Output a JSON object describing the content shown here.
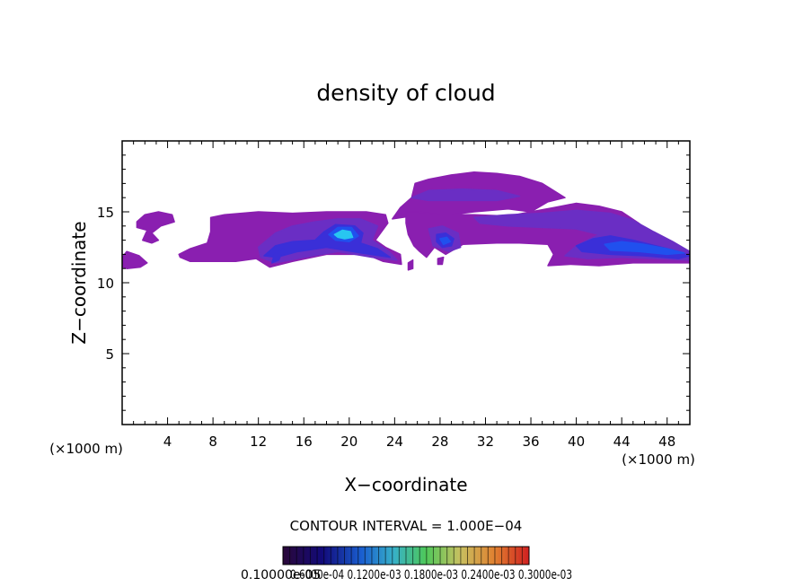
{
  "chart_data": {
    "type": "heatmap",
    "title": "density of cloud",
    "xlabel": "X−coordinate",
    "ylabel": "Z−coordinate",
    "x_unit_left": "(×1000 m)",
    "x_unit_right": "(×1000 m)",
    "xlim": [
      0,
      50
    ],
    "ylim": [
      0,
      20
    ],
    "x_ticks": [
      4,
      8,
      12,
      16,
      20,
      24,
      28,
      32,
      36,
      40,
      44,
      48
    ],
    "y_ticks": [
      5,
      10,
      15
    ],
    "contour_interval_text": "CONTOUR INTERVAL = 1.000E−04",
    "colorbar_labels_text": "0.10000e-05",
    "colorbar_tick_labels_text": "0.6000e-04 0.1200e-03 0.1800e-03 0.2400e-03 0.3000e-03",
    "colors": {
      "outer": "#8a1fb0",
      "low": "#6a2ec4",
      "mid": "#3a2fd8",
      "high": "#2050ee",
      "peak": "#28c6f0"
    },
    "regions": [
      {
        "level": "outer",
        "pts": [
          [
            0,
            11.8
          ],
          [
            0.4,
            12.2
          ],
          [
            1.5,
            11.9
          ],
          [
            2.2,
            11.4
          ],
          [
            1.6,
            11.1
          ],
          [
            0.4,
            11.0
          ],
          [
            0,
            11.1
          ]
        ]
      },
      {
        "level": "outer",
        "pts": [
          [
            1.3,
            14.3
          ],
          [
            2.0,
            14.8
          ],
          [
            3.2,
            15.0
          ],
          [
            4.4,
            14.8
          ],
          [
            4.6,
            14.3
          ],
          [
            3.4,
            14.0
          ],
          [
            2.6,
            13.5
          ],
          [
            3.2,
            13.0
          ],
          [
            2.6,
            12.8
          ],
          [
            1.8,
            13.0
          ],
          [
            2.2,
            13.7
          ],
          [
            1.3,
            13.9
          ]
        ]
      },
      {
        "level": "outer",
        "pts": [
          [
            5.0,
            12.0
          ],
          [
            6.0,
            12.4
          ],
          [
            7.5,
            12.8
          ],
          [
            7.8,
            13.6
          ],
          [
            7.8,
            14.6
          ],
          [
            9.0,
            14.8
          ],
          [
            12.0,
            15.0
          ],
          [
            15.0,
            14.9
          ],
          [
            18.0,
            15.0
          ],
          [
            21.5,
            15.0
          ],
          [
            23.2,
            14.8
          ],
          [
            23.4,
            14.2
          ],
          [
            22.3,
            13.0
          ],
          [
            23.2,
            12.5
          ],
          [
            24.5,
            12.0
          ],
          [
            24.6,
            11.3
          ],
          [
            23.0,
            11.5
          ],
          [
            21.5,
            12.0
          ],
          [
            18.0,
            12.0
          ],
          [
            15.0,
            11.5
          ],
          [
            13.0,
            11.1
          ],
          [
            11.8,
            11.7
          ],
          [
            10.0,
            11.5
          ],
          [
            8.0,
            11.5
          ],
          [
            6.0,
            11.5
          ],
          [
            5.1,
            11.8
          ]
        ]
      },
      {
        "level": "outer",
        "pts": [
          [
            23.8,
            14.5
          ],
          [
            24.5,
            15.3
          ],
          [
            25.5,
            16.0
          ],
          [
            25.8,
            17.0
          ],
          [
            27.0,
            17.3
          ],
          [
            29.0,
            17.6
          ],
          [
            31.0,
            17.8
          ],
          [
            33.0,
            17.7
          ],
          [
            35.0,
            17.5
          ],
          [
            37.0,
            17.0
          ],
          [
            38.0,
            16.5
          ],
          [
            39.0,
            16.0
          ],
          [
            37.5,
            15.7
          ],
          [
            36.0,
            15.0
          ],
          [
            34.0,
            15.2
          ],
          [
            31.0,
            15.0
          ],
          [
            29.0,
            14.8
          ],
          [
            27.0,
            14.8
          ],
          [
            25.5,
            14.7
          ]
        ]
      },
      {
        "level": "outer",
        "pts": [
          [
            25.0,
            15.0
          ],
          [
            26.0,
            15.0
          ],
          [
            28.0,
            14.8
          ],
          [
            31.0,
            14.8
          ],
          [
            34.0,
            14.7
          ],
          [
            36.0,
            15.0
          ],
          [
            38.0,
            15.3
          ],
          [
            40.0,
            15.6
          ],
          [
            42.0,
            15.4
          ],
          [
            44.0,
            15.0
          ],
          [
            45.5,
            14.2
          ],
          [
            46.5,
            13.5
          ],
          [
            47.5,
            13.0
          ],
          [
            49.0,
            12.4
          ],
          [
            50.0,
            12.0
          ],
          [
            50.0,
            11.4
          ],
          [
            47.5,
            11.4
          ],
          [
            45.0,
            11.4
          ],
          [
            42.0,
            11.2
          ],
          [
            39.5,
            11.3
          ],
          [
            37.5,
            11.2
          ],
          [
            38.0,
            12.0
          ],
          [
            37.5,
            12.7
          ],
          [
            35.0,
            12.8
          ],
          [
            33.0,
            12.8
          ],
          [
            30.0,
            12.7
          ],
          [
            28.5,
            12.0
          ],
          [
            27.5,
            12.5
          ],
          [
            26.8,
            11.8
          ],
          [
            26.2,
            12.2
          ],
          [
            25.7,
            12.6
          ],
          [
            25.2,
            13.4
          ],
          [
            25.0,
            14.2
          ]
        ]
      },
      {
        "level": "outer",
        "pts": [
          [
            25.2,
            11.4
          ],
          [
            25.6,
            11.6
          ],
          [
            25.6,
            11.0
          ],
          [
            25.2,
            10.9
          ]
        ]
      },
      {
        "level": "outer",
        "pts": [
          [
            27.8,
            11.7
          ],
          [
            28.3,
            11.8
          ],
          [
            28.2,
            11.3
          ],
          [
            27.8,
            11.3
          ]
        ]
      },
      {
        "level": "low",
        "pts": [
          [
            12.0,
            12.5
          ],
          [
            13.5,
            13.5
          ],
          [
            15.0,
            14.0
          ],
          [
            17.0,
            14.3
          ],
          [
            19.0,
            14.5
          ],
          [
            21.0,
            14.5
          ],
          [
            22.5,
            14.0
          ],
          [
            22.0,
            13.0
          ],
          [
            23.5,
            12.2
          ],
          [
            24.2,
            11.6
          ],
          [
            22.0,
            11.8
          ],
          [
            19.0,
            12.2
          ],
          [
            16.0,
            11.8
          ],
          [
            13.5,
            11.4
          ],
          [
            12.2,
            11.8
          ]
        ]
      },
      {
        "level": "low",
        "pts": [
          [
            25.5,
            16.0
          ],
          [
            27.0,
            16.5
          ],
          [
            30.0,
            16.6
          ],
          [
            33.0,
            16.5
          ],
          [
            35.0,
            16.1
          ],
          [
            33.0,
            15.8
          ],
          [
            30.0,
            15.8
          ],
          [
            27.0,
            15.8
          ]
        ]
      },
      {
        "level": "low",
        "pts": [
          [
            31.0,
            14.6
          ],
          [
            34.0,
            14.8
          ],
          [
            37.0,
            14.9
          ],
          [
            40.0,
            15.1
          ],
          [
            43.0,
            14.9
          ],
          [
            45.0,
            14.4
          ],
          [
            46.8,
            13.6
          ],
          [
            48.5,
            12.9
          ],
          [
            50.0,
            12.2
          ],
          [
            50.0,
            11.6
          ],
          [
            47.0,
            11.7
          ],
          [
            44.0,
            11.8
          ],
          [
            41.0,
            11.7
          ],
          [
            39.0,
            11.9
          ],
          [
            40.0,
            12.6
          ],
          [
            42.0,
            13.4
          ],
          [
            40.0,
            13.8
          ],
          [
            37.0,
            13.9
          ],
          [
            34.0,
            14.0
          ],
          [
            31.5,
            14.2
          ]
        ]
      },
      {
        "level": "low",
        "pts": [
          [
            27.0,
            13.8
          ],
          [
            28.2,
            14.0
          ],
          [
            29.6,
            13.5
          ],
          [
            29.8,
            12.5
          ],
          [
            28.8,
            12.2
          ],
          [
            27.4,
            12.6
          ]
        ]
      },
      {
        "level": "mid",
        "pts": [
          [
            12.5,
            11.9
          ],
          [
            13.5,
            12.6
          ],
          [
            15.0,
            12.9
          ],
          [
            17.0,
            13.0
          ],
          [
            17.8,
            13.6
          ],
          [
            18.8,
            14.1
          ],
          [
            20.5,
            14.0
          ],
          [
            21.2,
            13.5
          ],
          [
            21.0,
            12.8
          ],
          [
            22.5,
            12.4
          ],
          [
            23.6,
            11.8
          ],
          [
            21.0,
            12.1
          ],
          [
            18.0,
            12.5
          ],
          [
            15.5,
            12.2
          ],
          [
            13.6,
            11.8
          ]
        ]
      },
      {
        "level": "mid",
        "pts": [
          [
            40.0,
            12.6
          ],
          [
            41.5,
            13.1
          ],
          [
            43.0,
            13.3
          ],
          [
            45.0,
            13.0
          ],
          [
            47.0,
            12.6
          ],
          [
            49.0,
            12.2
          ],
          [
            50.0,
            11.9
          ],
          [
            49.0,
            11.7
          ],
          [
            46.0,
            11.9
          ],
          [
            43.0,
            12.0
          ],
          [
            40.5,
            12.2
          ]
        ]
      },
      {
        "level": "mid",
        "pts": [
          [
            27.7,
            13.4
          ],
          [
            28.5,
            13.5
          ],
          [
            29.2,
            13.1
          ],
          [
            29.0,
            12.6
          ],
          [
            28.2,
            12.5
          ],
          [
            27.7,
            12.9
          ]
        ]
      },
      {
        "level": "mid",
        "pts": [
          [
            13.4,
            12.0
          ],
          [
            14.2,
            12.4
          ],
          [
            13.8,
            11.6
          ],
          [
            13.2,
            11.4
          ]
        ]
      },
      {
        "level": "high",
        "pts": [
          [
            18.2,
            13.4
          ],
          [
            19.0,
            13.9
          ],
          [
            20.2,
            13.9
          ],
          [
            20.8,
            13.3
          ],
          [
            20.0,
            12.9
          ],
          [
            18.8,
            13.0
          ]
        ]
      },
      {
        "level": "high",
        "pts": [
          [
            42.5,
            12.7
          ],
          [
            44.0,
            12.9
          ],
          [
            46.0,
            12.7
          ],
          [
            48.0,
            12.4
          ],
          [
            49.5,
            12.1
          ],
          [
            48.0,
            12.0
          ],
          [
            45.5,
            12.2
          ],
          [
            43.0,
            12.3
          ]
        ]
      },
      {
        "level": "high",
        "pts": [
          [
            28.0,
            13.1
          ],
          [
            28.6,
            13.2
          ],
          [
            28.9,
            12.9
          ],
          [
            28.3,
            12.7
          ]
        ]
      },
      {
        "level": "peak",
        "pts": [
          [
            18.7,
            13.4
          ],
          [
            19.4,
            13.7
          ],
          [
            20.1,
            13.6
          ],
          [
            20.3,
            13.2
          ],
          [
            19.6,
            13.1
          ],
          [
            19.0,
            13.2
          ]
        ]
      }
    ]
  }
}
